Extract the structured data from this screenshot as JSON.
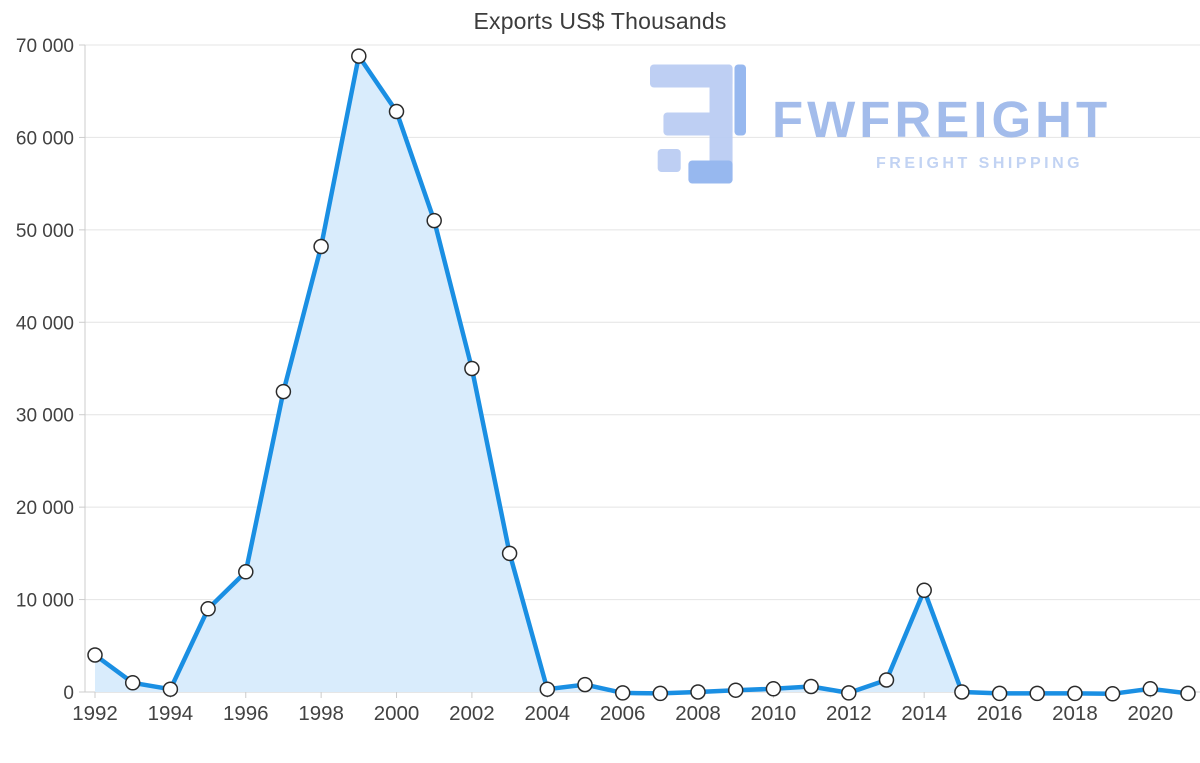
{
  "title": "Exports US$ Thousands",
  "watermark": {
    "brand": "FWFREIGHT",
    "tagline": "FREIGHT SHIPPING",
    "logo_icon": "fwfreight-f-glyph",
    "brand_color": "#9cb7ea",
    "tagline_color": "#bdd0f2",
    "logo_color_light": "#b9ccf3",
    "logo_color_mid": "#8fb2ee"
  },
  "chart_data": {
    "type": "area",
    "title": "Exports US$ Thousands",
    "xlabel": "",
    "ylabel": "",
    "x": [
      1992,
      1993,
      1994,
      1995,
      1996,
      1997,
      1998,
      1999,
      2000,
      2001,
      2002,
      2003,
      2004,
      2005,
      2006,
      2007,
      2008,
      2009,
      2010,
      2011,
      2012,
      2013,
      2014,
      2015,
      2016,
      2017,
      2018,
      2019,
      2020,
      2021
    ],
    "values": [
      4000,
      1000,
      300,
      9000,
      13000,
      32500,
      48200,
      68800,
      62800,
      51000,
      35000,
      15000,
      300,
      800,
      -100,
      -150,
      0,
      200,
      350,
      600,
      -100,
      1300,
      11000,
      0,
      -150,
      -150,
      -150,
      -200,
      350,
      -150
    ],
    "ylim": [
      0,
      70000
    ],
    "yticks": [
      0,
      10000,
      20000,
      30000,
      40000,
      50000,
      60000,
      70000
    ],
    "ytick_labels": [
      "0",
      "10 000",
      "20 000",
      "30 000",
      "40 000",
      "50 000",
      "60 000",
      "70 000"
    ],
    "xtick_labels": [
      "1992",
      "1994",
      "1996",
      "1998",
      "2000",
      "2002",
      "2004",
      "2006",
      "2008",
      "2010",
      "2012",
      "2014",
      "2016",
      "2018",
      "2020"
    ],
    "grid": "horizontal",
    "legend": "none",
    "colors": {
      "line": "#1a8fe3",
      "fill": "#d9ecfc",
      "marker_fill": "#ffffff",
      "marker_stroke": "#2b2b2b",
      "grid": "#e4e4e4",
      "axis_line": "#cccccc",
      "axis_text": "#424242",
      "title_text": "#3c3c3c"
    }
  }
}
